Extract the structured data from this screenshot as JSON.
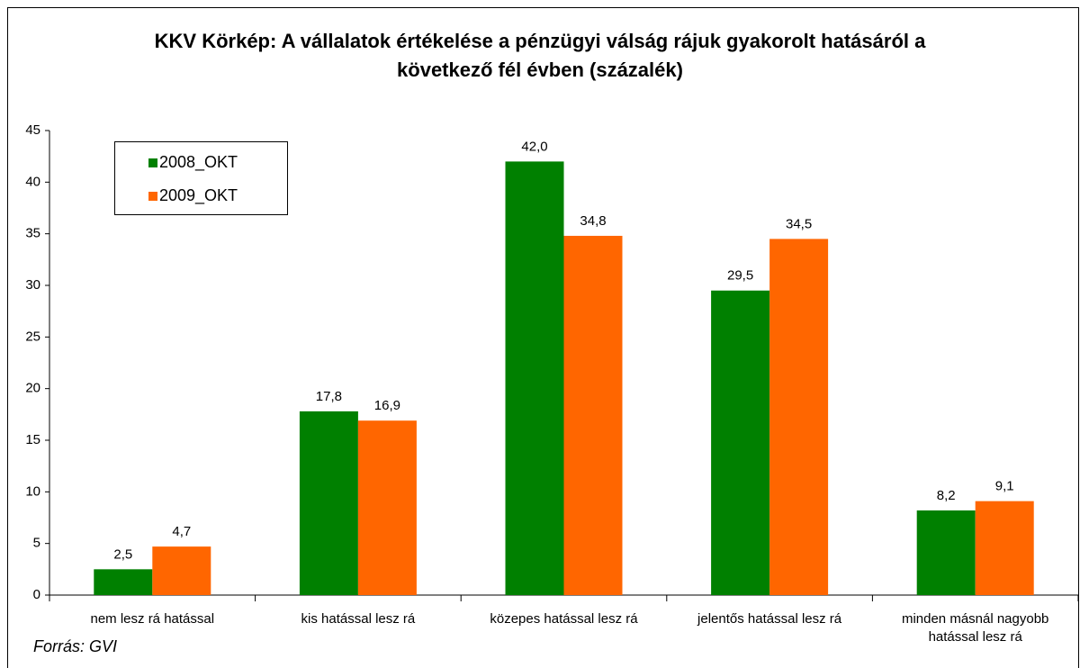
{
  "chart_data": {
    "type": "bar",
    "title": "KKV Körkép: A vállalatok értékelése a pénzügyi válság rájuk gyakorolt hatásáról a következő fél évben (százalék)",
    "categories": [
      "nem lesz rá hatással",
      "kis hatással lesz rá",
      "közepes hatással lesz rá",
      "jelentős hatással lesz rá",
      "minden másnál nagyobb hatással lesz rá"
    ],
    "series": [
      {
        "name": "2008_OKT",
        "color": "#008000",
        "values": [
          2.5,
          17.8,
          42.0,
          29.5,
          8.2
        ],
        "value_labels": [
          "2,5",
          "17,8",
          "42,0",
          "29,5",
          "8,2"
        ]
      },
      {
        "name": "2009_OKT",
        "color": "#ff6600",
        "values": [
          4.7,
          16.9,
          34.8,
          34.5,
          9.1
        ],
        "value_labels": [
          "4,7",
          "16,9",
          "34,8",
          "34,5",
          "9,1"
        ]
      }
    ],
    "ylim": [
      0,
      45
    ],
    "yticks": [
      0,
      5,
      10,
      15,
      20,
      25,
      30,
      35,
      40,
      45
    ],
    "legend": "upper-left",
    "source": "Forrás: GVI"
  }
}
